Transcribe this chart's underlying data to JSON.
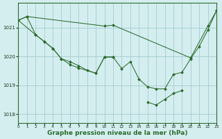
{
  "background_color": "#d4eef0",
  "grid_color": "#aad0d4",
  "line_color": "#2d6b2d",
  "marker_color": "#2d6b2d",
  "xlabel": "Graphe pression niveau de la mer (hPa)",
  "xlabel_fontsize": 6.5,
  "xlim": [
    0,
    23
  ],
  "ylim": [
    1017.7,
    1021.85
  ],
  "yticks": [
    1018,
    1019,
    1020,
    1021
  ],
  "xticks": [
    0,
    1,
    2,
    3,
    4,
    5,
    6,
    7,
    8,
    9,
    10,
    11,
    12,
    13,
    14,
    15,
    16,
    17,
    18,
    19,
    20,
    21,
    22,
    23
  ],
  "series": [
    {
      "x": [
        0,
        1,
        10,
        11,
        20,
        22,
        23
      ],
      "y": [
        1021.25,
        1021.38,
        1021.05,
        1021.08,
        1019.95,
        1021.05,
        1021.58
      ]
    },
    {
      "x": [
        0,
        1,
        2,
        3,
        4,
        5,
        6,
        7,
        8,
        9,
        10,
        11
      ],
      "y": [
        1021.25,
        1021.38,
        1020.75,
        1020.52,
        1020.28,
        1019.92,
        1019.82,
        1019.68,
        1019.52,
        1019.42,
        1019.98,
        1019.98
      ]
    },
    {
      "x": [
        0,
        2,
        3,
        4,
        5,
        6,
        7,
        9,
        10,
        11,
        12,
        13,
        14,
        15,
        16,
        17,
        18,
        19,
        20,
        21,
        22,
        23
      ],
      "y": [
        1021.25,
        1020.75,
        1020.52,
        1020.28,
        1019.92,
        1019.72,
        1019.6,
        1019.42,
        1019.98,
        1019.98,
        1019.58,
        1019.82,
        1019.22,
        1018.95,
        1018.88,
        1018.88,
        1019.38,
        1019.45,
        1019.92,
        1020.35,
        1020.92,
        1021.58
      ]
    },
    {
      "x": [
        15,
        16,
        17,
        18,
        19
      ],
      "y": [
        1018.42,
        1018.32,
        1018.52,
        1018.72,
        1018.82
      ]
    }
  ]
}
